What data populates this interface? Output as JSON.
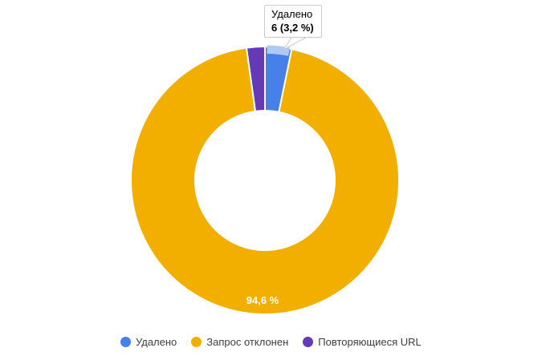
{
  "chart_data": {
    "type": "pie",
    "donut": true,
    "title": "",
    "categories": [
      "Удалено",
      "Запрос отклонен",
      "Повторяющиеся URL"
    ],
    "values_percent": [
      3.2,
      94.6,
      2.2
    ],
    "counts_visible": {
      "Удалено": 6
    },
    "colors": [
      "#4880ea",
      "#f2af00",
      "#6639b7"
    ],
    "slice_ids": [
      "deleted",
      "request-rejected",
      "duplicate-urls"
    ],
    "visible_slice_label": "94,6 %",
    "legend_position": "bottom",
    "hover_highlight_color": "#b0c8f4",
    "background": "#ffffff"
  },
  "tooltip": {
    "category": "Удалено",
    "value": "6 (3,2 %)"
  },
  "legend": {
    "items": [
      {
        "label": "Удалено",
        "color": "#4880ea"
      },
      {
        "label": "Запрос отклонен",
        "color": "#f2af00"
      },
      {
        "label": "Повторяющиеся URL",
        "color": "#6639b7"
      }
    ]
  }
}
